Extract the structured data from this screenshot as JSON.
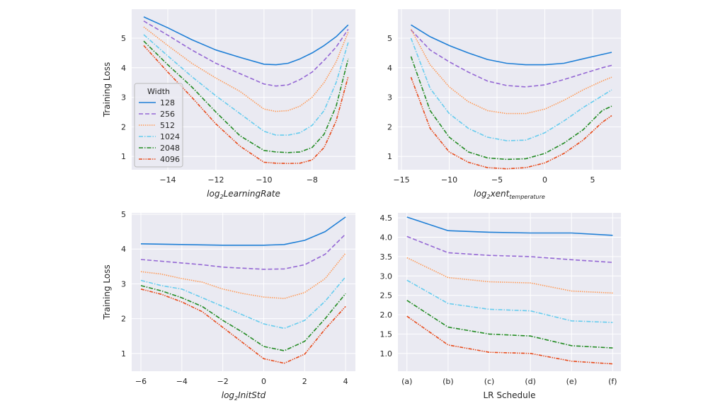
{
  "style": {
    "background": "#eaeaf2",
    "grid": "#ffffff",
    "grid_on": true
  },
  "legend": {
    "title": "Width",
    "placement": "lower-left of first panel"
  },
  "series_styles": [
    {
      "name": "128",
      "color": "#1f7fd6",
      "dash": "solid"
    },
    {
      "name": "256",
      "color": "#9467d4",
      "dash": "dashed"
    },
    {
      "name": "512",
      "color": "#ff9955",
      "dash": "dotted"
    },
    {
      "name": "1024",
      "color": "#66ccee",
      "dash": "dashdot"
    },
    {
      "name": "2048",
      "color": "#228b22",
      "dash": "dashdot"
    },
    {
      "name": "4096",
      "color": "#e84a1a",
      "dash": "dashdotdot"
    }
  ],
  "chart_data": [
    {
      "type": "line",
      "ylabel": "Training Loss",
      "xlabel_parts": [
        [
          "log",
          false
        ],
        [
          "2",
          true
        ],
        [
          "LearningRate",
          false
        ]
      ],
      "xlim": [
        -15.5,
        -6.2
      ],
      "ylim": [
        0.55,
        5.98
      ],
      "xticks": [
        -14,
        -12,
        -10,
        -8
      ],
      "yticks": [
        1,
        2,
        3,
        4,
        5
      ],
      "x": [
        -15,
        -14,
        -13,
        -12,
        -11,
        -10,
        -9.5,
        -9,
        -8.5,
        -8,
        -7.5,
        -7,
        -6.5
      ],
      "series": [
        {
          "name": "128",
          "values": [
            5.72,
            5.35,
            4.95,
            4.6,
            4.35,
            4.12,
            4.1,
            4.15,
            4.3,
            4.5,
            4.75,
            5.05,
            5.45
          ]
        },
        {
          "name": "256",
          "values": [
            5.58,
            5.1,
            4.6,
            4.15,
            3.8,
            3.45,
            3.38,
            3.42,
            3.6,
            3.85,
            4.25,
            4.7,
            5.3
          ]
        },
        {
          "name": "512",
          "values": [
            5.38,
            4.75,
            4.15,
            3.65,
            3.2,
            2.6,
            2.52,
            2.55,
            2.7,
            3.0,
            3.5,
            4.2,
            5.2
          ]
        },
        {
          "name": "1024",
          "values": [
            5.12,
            4.4,
            3.7,
            3.05,
            2.45,
            1.85,
            1.72,
            1.72,
            1.8,
            2.05,
            2.55,
            3.5,
            4.85
          ]
        },
        {
          "name": "2048",
          "values": [
            4.9,
            4.1,
            3.35,
            2.5,
            1.7,
            1.2,
            1.15,
            1.13,
            1.15,
            1.3,
            1.75,
            2.7,
            4.3
          ]
        },
        {
          "name": "4096",
          "values": [
            4.75,
            3.85,
            3.0,
            2.1,
            1.35,
            0.8,
            0.77,
            0.76,
            0.77,
            0.88,
            1.3,
            2.2,
            3.7
          ]
        }
      ]
    },
    {
      "type": "line",
      "ylabel": "",
      "xlabel_parts": [
        [
          "log",
          false
        ],
        [
          "2",
          true
        ],
        [
          "xent",
          false
        ],
        [
          "temperature",
          true
        ]
      ],
      "xlim": [
        -15.37,
        7.96
      ],
      "ylim": [
        0.55,
        5.98
      ],
      "xticks": [
        -15,
        -10,
        -5,
        0,
        5
      ],
      "yticks": [
        1,
        2,
        3,
        4,
        5
      ],
      "x": [
        -14,
        -12,
        -10,
        -8,
        -6,
        -4,
        -2,
        0,
        2,
        4,
        6,
        7
      ],
      "series": [
        {
          "name": "128",
          "values": [
            5.45,
            5.05,
            4.75,
            4.5,
            4.28,
            4.15,
            4.1,
            4.1,
            4.15,
            4.3,
            4.45,
            4.52
          ]
        },
        {
          "name": "256",
          "values": [
            5.28,
            4.6,
            4.2,
            3.85,
            3.55,
            3.4,
            3.35,
            3.42,
            3.6,
            3.8,
            4.0,
            4.08
          ]
        },
        {
          "name": "512",
          "values": [
            5.3,
            4.1,
            3.35,
            2.85,
            2.55,
            2.45,
            2.45,
            2.6,
            2.9,
            3.25,
            3.55,
            3.68
          ]
        },
        {
          "name": "1024",
          "values": [
            5.0,
            3.3,
            2.45,
            1.95,
            1.65,
            1.53,
            1.55,
            1.8,
            2.2,
            2.65,
            3.05,
            3.25
          ]
        },
        {
          "name": "2048",
          "values": [
            4.38,
            2.55,
            1.65,
            1.15,
            0.95,
            0.9,
            0.92,
            1.1,
            1.45,
            1.9,
            2.55,
            2.7
          ]
        },
        {
          "name": "4096",
          "values": [
            3.68,
            1.95,
            1.15,
            0.8,
            0.62,
            0.58,
            0.62,
            0.78,
            1.1,
            1.55,
            2.15,
            2.38
          ]
        }
      ]
    },
    {
      "type": "line",
      "ylabel": "Training Loss",
      "xlabel_parts": [
        [
          "log",
          false
        ],
        [
          "2",
          true
        ],
        [
          "InitStd",
          false
        ]
      ],
      "xlim": [
        -6.45,
        4.48
      ],
      "ylim": [
        0.49,
        5.04
      ],
      "xticks": [
        -6,
        -4,
        -2,
        0,
        2,
        4
      ],
      "yticks": [
        1,
        2,
        3,
        4,
        5
      ],
      "x": [
        -6,
        -5,
        -4,
        -3,
        -2,
        -1,
        0,
        1,
        2,
        3,
        4
      ],
      "series": [
        {
          "name": "128",
          "values": [
            4.15,
            4.14,
            4.13,
            4.12,
            4.11,
            4.11,
            4.11,
            4.13,
            4.25,
            4.5,
            4.92
          ]
        },
        {
          "name": "256",
          "values": [
            3.7,
            3.65,
            3.6,
            3.55,
            3.48,
            3.45,
            3.42,
            3.43,
            3.55,
            3.85,
            4.43
          ]
        },
        {
          "name": "512",
          "values": [
            3.35,
            3.28,
            3.15,
            3.05,
            2.85,
            2.72,
            2.62,
            2.58,
            2.75,
            3.15,
            3.88
          ]
        },
        {
          "name": "1024",
          "values": [
            3.1,
            2.95,
            2.85,
            2.6,
            2.35,
            2.1,
            1.85,
            1.72,
            1.95,
            2.5,
            3.2
          ]
        },
        {
          "name": "2048",
          "values": [
            2.95,
            2.8,
            2.6,
            2.35,
            1.95,
            1.6,
            1.2,
            1.08,
            1.35,
            2.0,
            2.72
          ]
        },
        {
          "name": "4096",
          "values": [
            2.85,
            2.7,
            2.48,
            2.2,
            1.75,
            1.3,
            0.85,
            0.72,
            0.98,
            1.7,
            2.35
          ]
        }
      ]
    },
    {
      "type": "line",
      "ylabel": "",
      "xlabel_parts": [
        [
          "LR Schedule",
          false
        ]
      ],
      "categories": [
        "(a)",
        "(b)",
        "(c)",
        "(d)",
        "(e)",
        "(f)"
      ],
      "ylim": [
        0.54,
        4.63
      ],
      "yticks": [
        1.0,
        1.5,
        2.0,
        2.5,
        3.0,
        3.5,
        4.0,
        4.5
      ],
      "series": [
        {
          "name": "128",
          "values": [
            4.52,
            4.17,
            4.13,
            4.11,
            4.11,
            4.05
          ]
        },
        {
          "name": "256",
          "values": [
            4.02,
            3.6,
            3.53,
            3.5,
            3.42,
            3.35
          ]
        },
        {
          "name": "512",
          "values": [
            3.47,
            2.96,
            2.85,
            2.82,
            2.61,
            2.56
          ]
        },
        {
          "name": "1024",
          "values": [
            2.89,
            2.29,
            2.14,
            2.1,
            1.84,
            1.8
          ]
        },
        {
          "name": "2048",
          "values": [
            2.37,
            1.68,
            1.5,
            1.45,
            1.2,
            1.14
          ]
        },
        {
          "name": "4096",
          "values": [
            1.96,
            1.22,
            1.03,
            1.0,
            0.8,
            0.73
          ]
        }
      ]
    }
  ]
}
